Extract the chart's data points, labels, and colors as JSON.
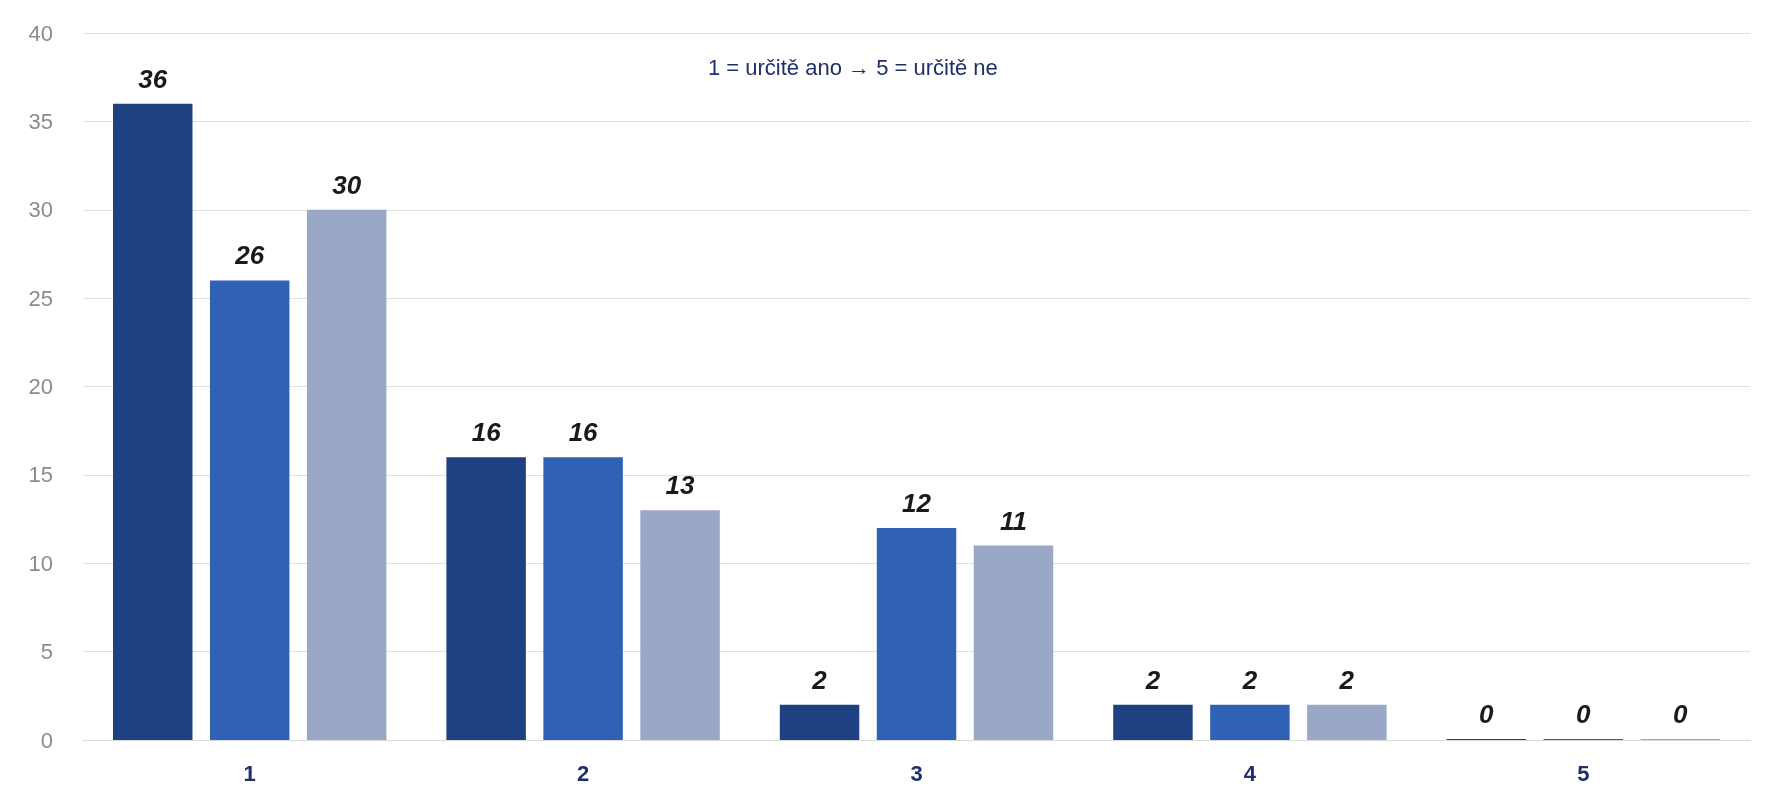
{
  "chart_data": {
    "type": "bar",
    "categories": [
      "1",
      "2",
      "3",
      "4",
      "5"
    ],
    "series": [
      {
        "color": "#1f4182",
        "values": [
          36,
          16,
          2,
          2,
          0
        ]
      },
      {
        "color": "#2f62b4",
        "values": [
          26,
          16,
          12,
          2,
          0
        ]
      },
      {
        "color": "#9ba7c6",
        "values": [
          30,
          13,
          11,
          2,
          0
        ]
      }
    ],
    "ylim": [
      0,
      40
    ],
    "yticks": [
      0,
      5,
      10,
      15,
      20,
      25,
      30,
      35,
      40
    ],
    "grid": "y",
    "data_labels": true,
    "annotations": [
      "1 = určitě ano → 5 = určitě ne"
    ]
  }
}
